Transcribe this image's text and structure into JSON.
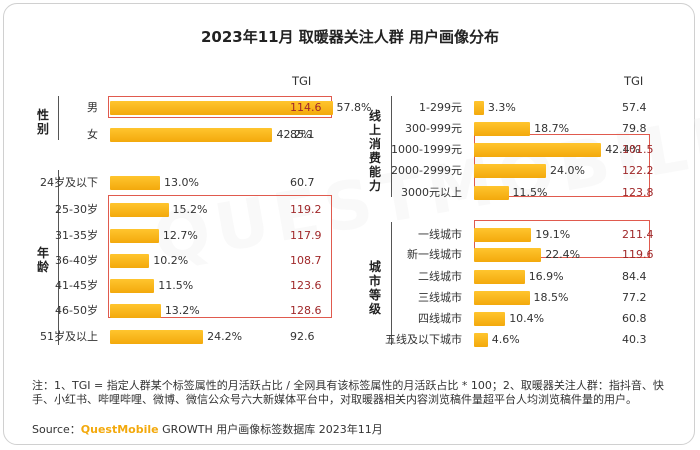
{
  "title": "2023年11月 取暖器关注人群 用户画像分布",
  "watermark": "QUESTMOBILE",
  "note": "注：1、TGI = 指定人群某个标签属性的月活跃占比 / 全网具有该标签属性的月活跃占比 * 100；2、取暖器关注人群：指抖音、快手、小红书、哔哩哔哩、微博、微信公众号六大新媒体平台中，对取暖器相关内容浏览稿件量超平台人均浏览稿件量的用户。",
  "source_prefix": "Source：",
  "source_brand": "QuestMobile",
  "source_rest": " GROWTH 用户画像标签数据库 2023年11月",
  "colors": {
    "bar_top": "#ffc52e",
    "bar_bottom": "#f3a90c",
    "highlight_box": "#e05a4e",
    "tgi_high": "#a0282a",
    "text": "#333333"
  },
  "chart_data": [
    {
      "type": "bar",
      "orientation": "horizontal",
      "tgi_header": "TGI",
      "groups": [
        {
          "label": "性别",
          "categories": [
            "男",
            "女"
          ],
          "values": [
            57.8,
            42.2
          ],
          "value_labels": [
            "57.8%",
            "42.2%"
          ],
          "tgi": [
            "114.6",
            "85.1"
          ]
        },
        {
          "label": "年龄",
          "categories": [
            "24岁及以下",
            "25-30岁",
            "31-35岁",
            "36-40岁",
            "41-45岁",
            "46-50岁",
            "51岁及以上"
          ],
          "values": [
            13.0,
            15.2,
            12.7,
            10.2,
            11.5,
            13.2,
            24.2
          ],
          "value_labels": [
            "13.0%",
            "15.2%",
            "12.7%",
            "10.2%",
            "11.5%",
            "13.2%",
            "24.2%"
          ],
          "tgi": [
            "60.7",
            "119.2",
            "117.9",
            "108.7",
            "123.6",
            "128.6",
            "92.6"
          ]
        }
      ],
      "highlighted": [
        "男",
        "25-30岁",
        "31-35岁",
        "36-40岁",
        "41-45岁",
        "46-50岁"
      ]
    },
    {
      "type": "bar",
      "orientation": "horizontal",
      "tgi_header": "TGI",
      "groups": [
        {
          "label": "线上消费能力",
          "categories": [
            "1-299元",
            "300-999元",
            "1000-1999元",
            "2000-2999元",
            "3000元以上"
          ],
          "values": [
            3.3,
            18.7,
            42.4,
            24.0,
            11.5
          ],
          "value_labels": [
            "3.3%",
            "18.7%",
            "42.4%",
            "24.0%",
            "11.5%"
          ],
          "tgi": [
            "57.4",
            "79.8",
            "101.5",
            "122.2",
            "123.8"
          ]
        },
        {
          "label": "城市等级",
          "categories": [
            "一线城市",
            "新一线城市",
            "二线城市",
            "三线城市",
            "四线城市",
            "五线及以下城市"
          ],
          "values": [
            19.1,
            22.4,
            16.9,
            18.5,
            10.4,
            4.6
          ],
          "value_labels": [
            "19.1%",
            "22.4%",
            "16.9%",
            "18.5%",
            "10.4%",
            "4.6%"
          ],
          "tgi": [
            "211.4",
            "119.6",
            "84.4",
            "77.2",
            "60.8",
            "40.3"
          ]
        }
      ],
      "highlighted": [
        "1000-1999元",
        "2000-2999元",
        "3000元以上",
        "一线城市",
        "新一线城市"
      ]
    }
  ]
}
